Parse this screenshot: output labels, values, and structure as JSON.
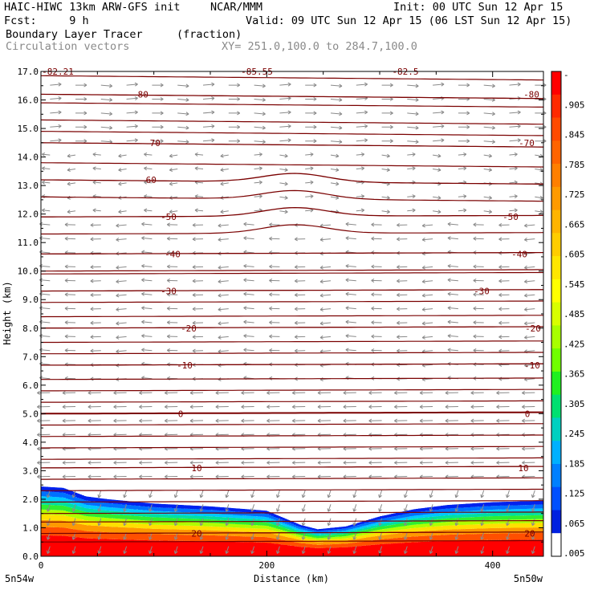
{
  "header": {
    "model": "HAIC-HIWC 13km ARW-GFS init",
    "org": "NCAR/MMM",
    "init": "Init: 00 UTC Sun 12 Apr 15",
    "fcst": "Fcst:     9 h",
    "valid": "Valid: 09 UTC Sun 12 Apr 15 (06 LST Sun 12 Apr 15)",
    "field": "Boundary Layer Tracer",
    "units": "(fraction)",
    "vectors": "Circulation vectors",
    "xy": "XY= 251.0,100.0 to 284.7,100.0"
  },
  "chart_data": {
    "type": "heatmap",
    "xlabel": "Distance (km)",
    "ylabel": "Height (km)",
    "xlim": [
      0,
      445
    ],
    "ylim": [
      0.0,
      17.0
    ],
    "x_ticks": [
      0,
      200,
      400
    ],
    "y_ticks": [
      "0.0",
      "1.0",
      "2.0",
      "3.0",
      "4.0",
      "5.0",
      "6.0",
      "7.0",
      "8.0",
      "9.0",
      "10.0",
      "11.0",
      "12.0",
      "13.0",
      "14.0",
      "15.0",
      "16.0",
      "17.0"
    ],
    "endpoints": {
      "left": "5n54w",
      "right": "5n50w"
    },
    "colorbar": {
      "labels": [
        "-",
        ".905",
        ".845",
        ".785",
        ".725",
        ".665",
        ".605",
        ".545",
        ".485",
        ".425",
        ".365",
        ".305",
        ".245",
        ".185",
        ".125",
        ".065",
        ".005"
      ],
      "colors": [
        "#ff0000",
        "#ff2a00",
        "#ff4a00",
        "#ff6400",
        "#ff7f00",
        "#ff9a00",
        "#ffb400",
        "#ffcd00",
        "#ffe600",
        "#ffff00",
        "#d8ff00",
        "#a8ff00",
        "#70ff00",
        "#20f020",
        "#00e070",
        "#00d0c0",
        "#00b0ff",
        "#0080ff",
        "#0050ff",
        "#0020e0",
        "#ffffff"
      ]
    },
    "tracer_top_km": [
      [
        0,
        2.45
      ],
      [
        20,
        2.4
      ],
      [
        40,
        2.1
      ],
      [
        60,
        2.0
      ],
      [
        100,
        1.85
      ],
      [
        150,
        1.75
      ],
      [
        200,
        1.6
      ],
      [
        230,
        1.1
      ],
      [
        245,
        0.95
      ],
      [
        270,
        1.05
      ],
      [
        300,
        1.4
      ],
      [
        330,
        1.65
      ],
      [
        360,
        1.8
      ],
      [
        400,
        1.9
      ],
      [
        445,
        1.95
      ]
    ],
    "temperature_contours": [
      {
        "label": "-80",
        "height_km": 16.2
      },
      {
        "label": "-70",
        "height_km": 14.5
      },
      {
        "label": "-60",
        "height_km": 13.2
      },
      {
        "label": "-50",
        "height_km": 11.9
      },
      {
        "label": "-40",
        "height_km": 10.6
      },
      {
        "label": "-30",
        "height_km": 9.3
      },
      {
        "label": "-20",
        "height_km": 8.0
      },
      {
        "label": "-10",
        "height_km": 6.7
      },
      {
        "label": "0",
        "height_km": 5.0
      },
      {
        "label": "10",
        "height_km": 3.1
      },
      {
        "label": "20",
        "height_km": 0.8
      }
    ],
    "top_labels": [
      "-82.21",
      "-85.55",
      "-82.5"
    ],
    "extra_contour_heights_km": [
      16.85,
      15.9,
      15.3,
      14.9,
      13.8,
      12.6,
      11.3,
      10.0,
      9.9,
      8.9,
      8.4,
      7.5,
      7.1,
      6.2,
      5.8,
      5.4,
      4.6,
      4.2,
      3.8,
      3.4,
      2.7,
      2.3,
      1.9,
      1.5,
      1.2,
      0.5
    ]
  }
}
